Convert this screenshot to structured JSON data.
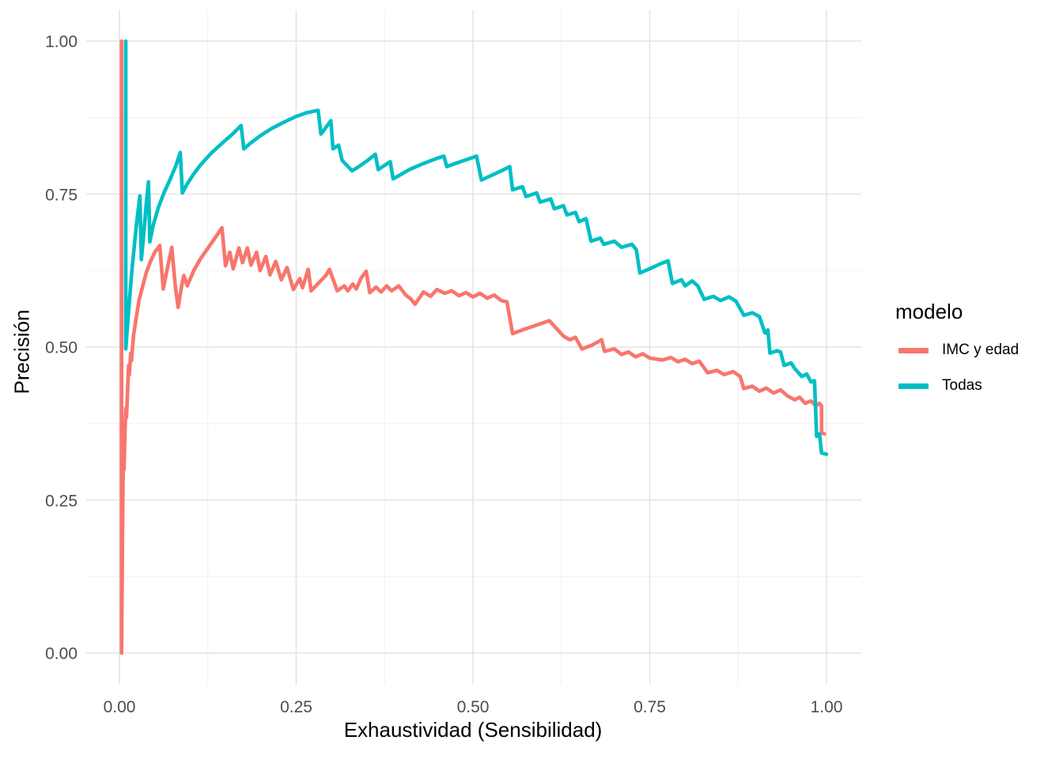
{
  "chart_data": {
    "type": "line",
    "title": "",
    "xlabel": "Exhaustividad (Sensibilidad)",
    "ylabel": "Precisión",
    "xlim": [
      0,
      1
    ],
    "ylim": [
      0,
      1
    ],
    "grid": "on",
    "legend": {
      "title": "modelo",
      "position": "right"
    },
    "x_ticks": {
      "values": [
        0,
        0.25,
        0.5,
        0.75,
        1
      ],
      "labels": [
        "0.00",
        "0.25",
        "0.50",
        "0.75",
        "1.00"
      ]
    },
    "y_ticks": {
      "values": [
        0,
        0.25,
        0.5,
        0.75,
        1
      ],
      "labels": [
        "0.00",
        "0.25",
        "0.50",
        "0.75",
        "1.00"
      ]
    },
    "colors": {
      "background": "#FFFFFF",
      "grid_major": "#E4E4E4",
      "grid_minor": "#F0F0F0",
      "tick_text": "#4D4D4D",
      "title_text": "#000000"
    },
    "series": [
      {
        "name": "IMC y edad",
        "color": "#F8766D",
        "points": [
          [
            0.003,
            1.0
          ],
          [
            0.003,
            0.0
          ],
          [
            0.004,
            0.15
          ],
          [
            0.005,
            0.28
          ],
          [
            0.006,
            0.33
          ],
          [
            0.0065,
            0.3
          ],
          [
            0.008,
            0.37
          ],
          [
            0.009,
            0.4
          ],
          [
            0.01,
            0.385
          ],
          [
            0.012,
            0.44
          ],
          [
            0.013,
            0.47
          ],
          [
            0.014,
            0.455
          ],
          [
            0.016,
            0.49
          ],
          [
            0.017,
            0.478
          ],
          [
            0.02,
            0.52
          ],
          [
            0.024,
            0.55
          ],
          [
            0.028,
            0.578
          ],
          [
            0.033,
            0.6
          ],
          [
            0.038,
            0.622
          ],
          [
            0.044,
            0.64
          ],
          [
            0.05,
            0.655
          ],
          [
            0.057,
            0.666
          ],
          [
            0.062,
            0.595
          ],
          [
            0.068,
            0.63
          ],
          [
            0.074,
            0.663
          ],
          [
            0.079,
            0.6
          ],
          [
            0.083,
            0.565
          ],
          [
            0.088,
            0.6
          ],
          [
            0.091,
            0.617
          ],
          [
            0.096,
            0.6
          ],
          [
            0.105,
            0.625
          ],
          [
            0.115,
            0.645
          ],
          [
            0.126,
            0.663
          ],
          [
            0.135,
            0.678
          ],
          [
            0.145,
            0.695
          ],
          [
            0.15,
            0.633
          ],
          [
            0.156,
            0.655
          ],
          [
            0.161,
            0.628
          ],
          [
            0.169,
            0.662
          ],
          [
            0.174,
            0.638
          ],
          [
            0.181,
            0.662
          ],
          [
            0.186,
            0.634
          ],
          [
            0.194,
            0.655
          ],
          [
            0.199,
            0.625
          ],
          [
            0.207,
            0.648
          ],
          [
            0.213,
            0.618
          ],
          [
            0.221,
            0.64
          ],
          [
            0.229,
            0.61
          ],
          [
            0.237,
            0.63
          ],
          [
            0.246,
            0.594
          ],
          [
            0.255,
            0.612
          ],
          [
            0.259,
            0.597
          ],
          [
            0.267,
            0.627
          ],
          [
            0.271,
            0.592
          ],
          [
            0.282,
            0.605
          ],
          [
            0.292,
            0.617
          ],
          [
            0.297,
            0.627
          ],
          [
            0.308,
            0.592
          ],
          [
            0.318,
            0.6
          ],
          [
            0.323,
            0.592
          ],
          [
            0.33,
            0.603
          ],
          [
            0.335,
            0.595
          ],
          [
            0.342,
            0.613
          ],
          [
            0.349,
            0.624
          ],
          [
            0.354,
            0.589
          ],
          [
            0.363,
            0.598
          ],
          [
            0.37,
            0.59
          ],
          [
            0.378,
            0.6
          ],
          [
            0.385,
            0.592
          ],
          [
            0.395,
            0.6
          ],
          [
            0.405,
            0.585
          ],
          [
            0.412,
            0.579
          ],
          [
            0.418,
            0.57
          ],
          [
            0.43,
            0.59
          ],
          [
            0.44,
            0.583
          ],
          [
            0.449,
            0.594
          ],
          [
            0.46,
            0.588
          ],
          [
            0.47,
            0.592
          ],
          [
            0.48,
            0.584
          ],
          [
            0.49,
            0.589
          ],
          [
            0.5,
            0.582
          ],
          [
            0.51,
            0.588
          ],
          [
            0.52,
            0.58
          ],
          [
            0.53,
            0.585
          ],
          [
            0.54,
            0.576
          ],
          [
            0.548,
            0.574
          ],
          [
            0.556,
            0.522
          ],
          [
            0.57,
            0.528
          ],
          [
            0.585,
            0.534
          ],
          [
            0.6,
            0.54
          ],
          [
            0.608,
            0.543
          ],
          [
            0.628,
            0.518
          ],
          [
            0.637,
            0.512
          ],
          [
            0.645,
            0.516
          ],
          [
            0.654,
            0.497
          ],
          [
            0.668,
            0.503
          ],
          [
            0.682,
            0.512
          ],
          [
            0.686,
            0.493
          ],
          [
            0.7,
            0.497
          ],
          [
            0.71,
            0.488
          ],
          [
            0.72,
            0.492
          ],
          [
            0.73,
            0.484
          ],
          [
            0.74,
            0.489
          ],
          [
            0.75,
            0.482
          ],
          [
            0.768,
            0.479
          ],
          [
            0.78,
            0.483
          ],
          [
            0.79,
            0.476
          ],
          [
            0.8,
            0.48
          ],
          [
            0.81,
            0.473
          ],
          [
            0.82,
            0.477
          ],
          [
            0.832,
            0.458
          ],
          [
            0.845,
            0.462
          ],
          [
            0.855,
            0.455
          ],
          [
            0.868,
            0.46
          ],
          [
            0.878,
            0.452
          ],
          [
            0.883,
            0.432
          ],
          [
            0.895,
            0.436
          ],
          [
            0.905,
            0.428
          ],
          [
            0.915,
            0.433
          ],
          [
            0.925,
            0.425
          ],
          [
            0.935,
            0.43
          ],
          [
            0.945,
            0.42
          ],
          [
            0.955,
            0.414
          ],
          [
            0.962,
            0.418
          ],
          [
            0.97,
            0.408
          ],
          [
            0.978,
            0.412
          ],
          [
            0.985,
            0.404
          ],
          [
            0.99,
            0.408
          ],
          [
            0.993,
            0.404
          ],
          [
            0.993,
            0.36
          ],
          [
            0.997,
            0.358
          ]
        ]
      },
      {
        "name": "Todas",
        "color": "#00BFC4",
        "points": [
          [
            0.009,
            1.0
          ],
          [
            0.009,
            0.497
          ],
          [
            0.013,
            0.56
          ],
          [
            0.018,
            0.63
          ],
          [
            0.024,
            0.7
          ],
          [
            0.029,
            0.747
          ],
          [
            0.031,
            0.643
          ],
          [
            0.034,
            0.68
          ],
          [
            0.038,
            0.735
          ],
          [
            0.041,
            0.77
          ],
          [
            0.043,
            0.672
          ],
          [
            0.048,
            0.7
          ],
          [
            0.055,
            0.728
          ],
          [
            0.063,
            0.752
          ],
          [
            0.072,
            0.775
          ],
          [
            0.08,
            0.797
          ],
          [
            0.086,
            0.818
          ],
          [
            0.089,
            0.752
          ],
          [
            0.095,
            0.765
          ],
          [
            0.105,
            0.783
          ],
          [
            0.115,
            0.798
          ],
          [
            0.13,
            0.817
          ],
          [
            0.145,
            0.833
          ],
          [
            0.16,
            0.848
          ],
          [
            0.172,
            0.862
          ],
          [
            0.176,
            0.824
          ],
          [
            0.185,
            0.833
          ],
          [
            0.2,
            0.846
          ],
          [
            0.215,
            0.857
          ],
          [
            0.23,
            0.866
          ],
          [
            0.25,
            0.877
          ],
          [
            0.265,
            0.883
          ],
          [
            0.281,
            0.887
          ],
          [
            0.285,
            0.848
          ],
          [
            0.299,
            0.87
          ],
          [
            0.302,
            0.824
          ],
          [
            0.31,
            0.83
          ],
          [
            0.315,
            0.805
          ],
          [
            0.329,
            0.788
          ],
          [
            0.34,
            0.796
          ],
          [
            0.352,
            0.806
          ],
          [
            0.362,
            0.815
          ],
          [
            0.366,
            0.79
          ],
          [
            0.375,
            0.797
          ],
          [
            0.383,
            0.803
          ],
          [
            0.387,
            0.775
          ],
          [
            0.395,
            0.78
          ],
          [
            0.41,
            0.79
          ],
          [
            0.43,
            0.8
          ],
          [
            0.448,
            0.808
          ],
          [
            0.459,
            0.812
          ],
          [
            0.463,
            0.795
          ],
          [
            0.475,
            0.8
          ],
          [
            0.49,
            0.806
          ],
          [
            0.505,
            0.812
          ],
          [
            0.512,
            0.773
          ],
          [
            0.525,
            0.78
          ],
          [
            0.54,
            0.788
          ],
          [
            0.552,
            0.795
          ],
          [
            0.556,
            0.757
          ],
          [
            0.57,
            0.762
          ],
          [
            0.575,
            0.746
          ],
          [
            0.59,
            0.752
          ],
          [
            0.595,
            0.737
          ],
          [
            0.61,
            0.742
          ],
          [
            0.615,
            0.726
          ],
          [
            0.628,
            0.731
          ],
          [
            0.633,
            0.716
          ],
          [
            0.645,
            0.72
          ],
          [
            0.65,
            0.705
          ],
          [
            0.66,
            0.71
          ],
          [
            0.667,
            0.673
          ],
          [
            0.68,
            0.678
          ],
          [
            0.685,
            0.668
          ],
          [
            0.7,
            0.673
          ],
          [
            0.71,
            0.663
          ],
          [
            0.725,
            0.668
          ],
          [
            0.731,
            0.659
          ],
          [
            0.736,
            0.621
          ],
          [
            0.75,
            0.628
          ],
          [
            0.765,
            0.636
          ],
          [
            0.776,
            0.641
          ],
          [
            0.782,
            0.604
          ],
          [
            0.795,
            0.61
          ],
          [
            0.8,
            0.6
          ],
          [
            0.81,
            0.608
          ],
          [
            0.818,
            0.6
          ],
          [
            0.827,
            0.578
          ],
          [
            0.84,
            0.583
          ],
          [
            0.85,
            0.576
          ],
          [
            0.862,
            0.582
          ],
          [
            0.872,
            0.575
          ],
          [
            0.883,
            0.552
          ],
          [
            0.895,
            0.556
          ],
          [
            0.905,
            0.55
          ],
          [
            0.913,
            0.523
          ],
          [
            0.917,
            0.528
          ],
          [
            0.92,
            0.49
          ],
          [
            0.93,
            0.494
          ],
          [
            0.935,
            0.492
          ],
          [
            0.94,
            0.47
          ],
          [
            0.95,
            0.474
          ],
          [
            0.955,
            0.465
          ],
          [
            0.965,
            0.452
          ],
          [
            0.972,
            0.456
          ],
          [
            0.978,
            0.443
          ],
          [
            0.983,
            0.445
          ],
          [
            0.986,
            0.354
          ],
          [
            0.99,
            0.358
          ],
          [
            0.993,
            0.327
          ],
          [
            1.0,
            0.325
          ]
        ]
      }
    ]
  }
}
